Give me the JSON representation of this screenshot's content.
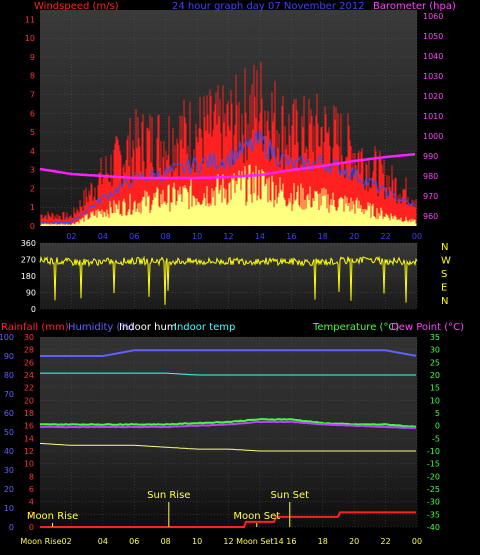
{
  "colors": {
    "wind": "#ff2020",
    "gust": "#ffff80",
    "avg": "#3050ff",
    "baro": "#ff20ff",
    "dir": "#ffff00",
    "rain": "#ff2020",
    "humidity": "#6060ff",
    "indoor_hum": "#ffffff",
    "indoor_temp": "#40ffff",
    "temperature": "#40ff40",
    "dewpoint": "#c040ff",
    "panel_bg": "#303030",
    "axis_text": "#ff3030"
  },
  "top": {
    "title_left": "Windspeed (m/s)",
    "title_center": "24 hour graph day  07 November 2012",
    "title_right": "Barometer (hpa)"
  },
  "dir_panel": {
    "compass": [
      "N",
      "W",
      "S",
      "E",
      "N"
    ]
  },
  "bottom": {
    "legend": [
      {
        "key": "rainfall",
        "label": "Rainfall (mm)",
        "color": "#ff2020"
      },
      {
        "key": "humidity",
        "label": "Humidity (%)",
        "color": "#6060ff"
      },
      {
        "key": "indoor_hum",
        "label": "Indoor hum",
        "color": "#ffffff"
      },
      {
        "key": "indoor_temp",
        "label": "Indoor temp",
        "color": "#40ffff"
      },
      {
        "key": "temperature",
        "label": "Temperature (°C)",
        "color": "#40ff40"
      },
      {
        "key": "dewpoint",
        "label": "Dew Point (°C)",
        "color": "#ff40ff"
      }
    ],
    "events": {
      "moon_rise": "Moon Rise",
      "sun_rise": "Sun Rise",
      "moon_set": "Moon Set",
      "sun_set": "Sun Set"
    }
  },
  "chart_data": [
    {
      "type": "line",
      "title": "24 hour graph day  07 November 2012",
      "xlabel": "",
      "ylabel": "Windspeed (m/s)",
      "y2label": "Barometer (hpa)",
      "x_ticks": [
        "02",
        "04",
        "06",
        "08",
        "10",
        "12",
        "14",
        "16",
        "18",
        "20",
        "22",
        "00"
      ],
      "ylim": [
        0,
        11.5
      ],
      "y_ticks": [
        0,
        1,
        2,
        3,
        4,
        5,
        6,
        7,
        8,
        9,
        10,
        11
      ],
      "y2lim": [
        955,
        1063
      ],
      "y2_ticks": [
        960,
        970,
        980,
        990,
        1000,
        1010,
        1020,
        1030,
        1040,
        1050,
        1060
      ],
      "hours": [
        0,
        2,
        4,
        6,
        8,
        10,
        12,
        14,
        16,
        18,
        20,
        22,
        24
      ],
      "series": [
        {
          "name": "gust",
          "values": [
            0.6,
            0.5,
            2.7,
            4.3,
            4.6,
            5.0,
            5.3,
            6.5,
            4.8,
            5.0,
            4.0,
            2.5,
            1.5
          ]
        },
        {
          "name": "average",
          "values": [
            0.2,
            0.2,
            1.5,
            2.5,
            2.8,
            3.3,
            3.6,
            4.5,
            3.2,
            3.4,
            2.8,
            1.8,
            1.0
          ]
        },
        {
          "name": "gust_wind",
          "values": [
            0.1,
            0.1,
            0.8,
            1.2,
            1.5,
            1.7,
            2.0,
            2.3,
            1.6,
            1.4,
            1.1,
            0.6,
            0.2
          ]
        },
        {
          "name": "barometer",
          "values": [
            983.5,
            981,
            980,
            979,
            979,
            979,
            979.5,
            980.5,
            983,
            985,
            987.5,
            989.5,
            991
          ]
        }
      ]
    },
    {
      "type": "line",
      "ylabel": "",
      "ylim": [
        0,
        360
      ],
      "y_ticks": [
        0,
        90,
        180,
        270,
        360
      ],
      "hours": [
        0,
        2,
        4,
        6,
        8,
        10,
        12,
        14,
        16,
        18,
        20,
        22,
        24
      ],
      "series": [
        {
          "name": "wind direction",
          "values": [
            270,
            255,
            258,
            262,
            262,
            258,
            260,
            262,
            258,
            255,
            268,
            262,
            258
          ]
        }
      ]
    },
    {
      "type": "line",
      "left_axis_humidity": [
        0,
        10,
        20,
        30,
        40,
        50,
        60,
        70,
        80,
        90,
        100
      ],
      "left_axis_rain": [
        0,
        2,
        4,
        6,
        8,
        10,
        12,
        14,
        16,
        18,
        20,
        22,
        24,
        26,
        28,
        30
      ],
      "right_axis_temp": [
        -40,
        -35,
        -30,
        -25,
        -20,
        -15,
        -10,
        -5,
        0,
        5,
        10,
        15,
        20,
        25,
        30,
        35
      ],
      "hours": [
        0,
        2,
        4,
        6,
        8,
        10,
        12,
        14,
        16,
        18,
        20,
        22,
        24
      ],
      "series": [
        {
          "name": "humidity",
          "values": [
            90,
            90,
            90,
            93,
            93,
            93,
            93,
            93,
            93,
            93,
            93,
            93,
            90
          ]
        },
        {
          "name": "indoor temp",
          "values": [
            81,
            81,
            81,
            81,
            81,
            80,
            80,
            80,
            80,
            80,
            80,
            80,
            80
          ]
        },
        {
          "name": "temperature",
          "values": [
            0.5,
            0.5,
            0.5,
            0.5,
            0.5,
            1.0,
            1.5,
            2.5,
            2.5,
            1.0,
            0.5,
            0.5,
            -0.5
          ]
        },
        {
          "name": "dew point",
          "values": [
            -0.5,
            -0.5,
            -0.5,
            -0.5,
            -0.5,
            0,
            0.5,
            1.5,
            1.5,
            0.5,
            0,
            -0.5,
            -1.0
          ]
        },
        {
          "name": "indoor hum",
          "values": [
            44,
            43,
            43,
            43,
            42,
            41,
            41,
            40,
            40,
            40,
            40,
            40,
            40
          ]
        },
        {
          "name": "rainfall",
          "values": [
            0,
            0,
            0,
            0,
            0,
            0,
            0,
            0.8,
            1.6,
            1.6,
            2.3,
            2.3,
            2.3
          ]
        }
      ]
    }
  ]
}
